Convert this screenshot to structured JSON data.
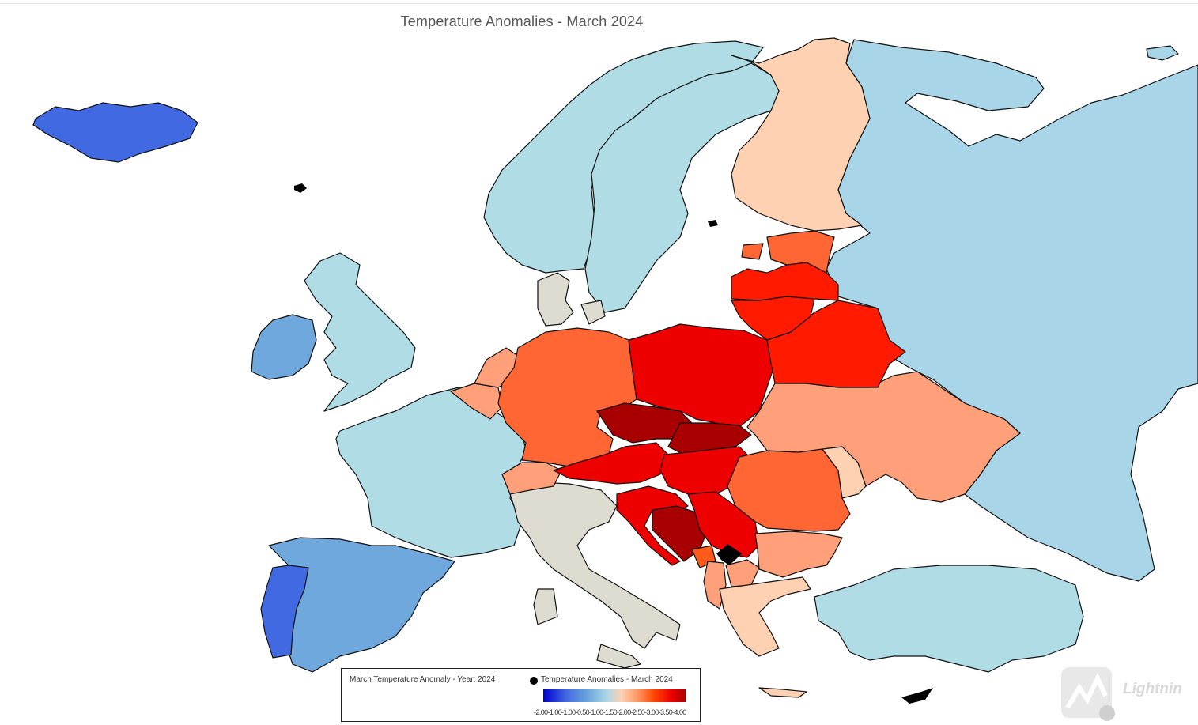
{
  "title": "Temperature Anomalies - March 2024",
  "legend": {
    "title": "March Temperature Anomaly - Year: 2024",
    "series": "Temperature Anomalies - March 2024",
    "ticks_text": "-2.00-1.00-1.00-0.50-1.00-1.50-2.00-2.50-3.00-3.50-4.00",
    "scale_min": -2.0,
    "scale_max": 4.0
  },
  "colors": {
    "cold_strong": "#4169e1",
    "cold": "#6fa8dc",
    "cool": "#a8d5e8",
    "neutral_light": "#b0dce6",
    "no_data": "#dedbd0",
    "warm_light": "#ffd1b3",
    "warm": "#ffa07a",
    "hot": "#ff6633",
    "hotter": "#ff1a00",
    "hottest": "#ee0000",
    "extreme": "#a80000"
  },
  "regions": [
    {
      "name": "Iceland",
      "class": "cold_strong"
    },
    {
      "name": "Portugal",
      "class": "cold_strong"
    },
    {
      "name": "Spain",
      "class": "cold"
    },
    {
      "name": "Ireland",
      "class": "cold"
    },
    {
      "name": "United Kingdom",
      "class": "neutral_light"
    },
    {
      "name": "France",
      "class": "neutral_light"
    },
    {
      "name": "Norway",
      "class": "neutral_light"
    },
    {
      "name": "Sweden",
      "class": "neutral_light"
    },
    {
      "name": "Russia",
      "class": "cool"
    },
    {
      "name": "Turkey",
      "class": "neutral_light"
    },
    {
      "name": "Finland",
      "class": "warm_light"
    },
    {
      "name": "Greece",
      "class": "warm_light"
    },
    {
      "name": "Moldova",
      "class": "warm_light"
    },
    {
      "name": "Italy",
      "class": "no_data"
    },
    {
      "name": "Denmark",
      "class": "no_data"
    },
    {
      "name": "Belgium",
      "class": "warm"
    },
    {
      "name": "Netherlands",
      "class": "warm"
    },
    {
      "name": "Ukraine",
      "class": "warm"
    },
    {
      "name": "Bulgaria",
      "class": "warm"
    },
    {
      "name": "Switzerland",
      "class": "warm"
    },
    {
      "name": "Germany",
      "class": "hot"
    },
    {
      "name": "Estonia",
      "class": "hot"
    },
    {
      "name": "Romania",
      "class": "hot"
    },
    {
      "name": "Latvia",
      "class": "hotter"
    },
    {
      "name": "Lithuania",
      "class": "hotter"
    },
    {
      "name": "Belarus",
      "class": "hotter"
    },
    {
      "name": "Poland",
      "class": "hottest"
    },
    {
      "name": "Austria",
      "class": "hottest"
    },
    {
      "name": "Hungary",
      "class": "hottest"
    },
    {
      "name": "Serbia",
      "class": "hottest"
    },
    {
      "name": "Croatia",
      "class": "hottest"
    },
    {
      "name": "Czechia",
      "class": "extreme"
    },
    {
      "name": "Slovakia",
      "class": "extreme"
    },
    {
      "name": "Bosnia and Herzegovina",
      "class": "extreme"
    }
  ],
  "watermark": "Lightnin"
}
